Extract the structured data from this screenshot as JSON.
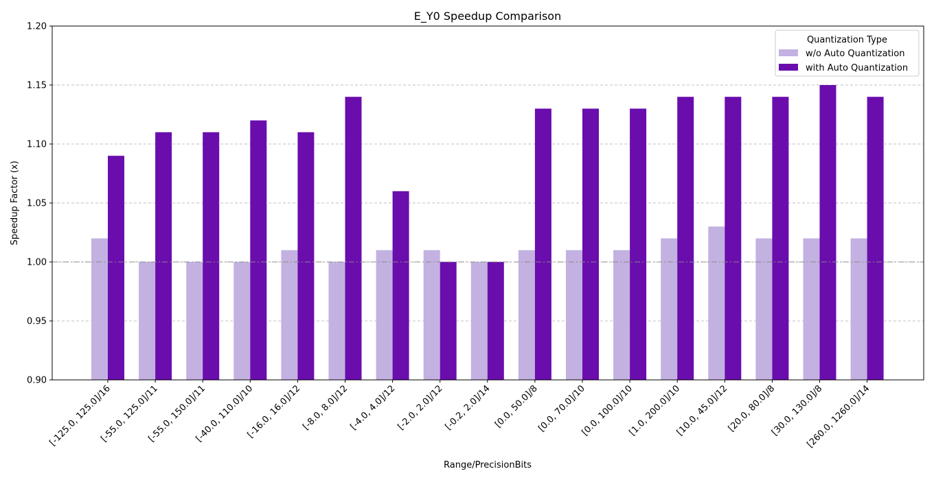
{
  "chart_data": {
    "type": "bar",
    "title": "E_Y0 Speedup Comparison",
    "xlabel": "Range/PrecisionBits",
    "ylabel": "Speedup Factor (x)",
    "ylim": [
      0.9,
      1.2
    ],
    "yticks": [
      "0.90",
      "0.95",
      "1.00",
      "1.05",
      "1.10",
      "1.15",
      "1.20"
    ],
    "grid": "y-dashed",
    "reference_line": 1.0,
    "legend": {
      "title": "Quantization Type",
      "placement": "top-right"
    },
    "categories": [
      "[-125.0, 125.0]/16",
      "[-55.0, 125.0]/11",
      "[-55.0, 150.0]/11",
      "[-40.0, 110.0]/10",
      "[-16.0, 16.0]/12",
      "[-8.0, 8.0]/12",
      "[-4.0, 4.0]/12",
      "[-2.0, 2.0]/12",
      "[-0.2, 2.0]/14",
      "[0.0, 50.0]/8",
      "[0.0, 70.0]/10",
      "[0.0, 100.0]/10",
      "[1.0, 200.0]/10",
      "[10.0, 45.0]/12",
      "[20.0, 80.0]/8",
      "[30.0, 130.0]/8",
      "[260.0, 1260.0]/14"
    ],
    "series": [
      {
        "name": "w/o Auto Quantization",
        "color": "#c3b1e1",
        "values": [
          1.02,
          1.0,
          1.0,
          1.0,
          1.01,
          1.0,
          1.01,
          1.01,
          1.0,
          1.01,
          1.01,
          1.01,
          1.02,
          1.03,
          1.02,
          1.02,
          1.02
        ]
      },
      {
        "name": "with Auto Quantization",
        "color": "#6a0dad",
        "values": [
          1.09,
          1.11,
          1.11,
          1.12,
          1.11,
          1.14,
          1.06,
          1.0,
          1.0,
          1.13,
          1.13,
          1.13,
          1.14,
          1.14,
          1.14,
          1.15,
          1.14
        ]
      }
    ]
  }
}
